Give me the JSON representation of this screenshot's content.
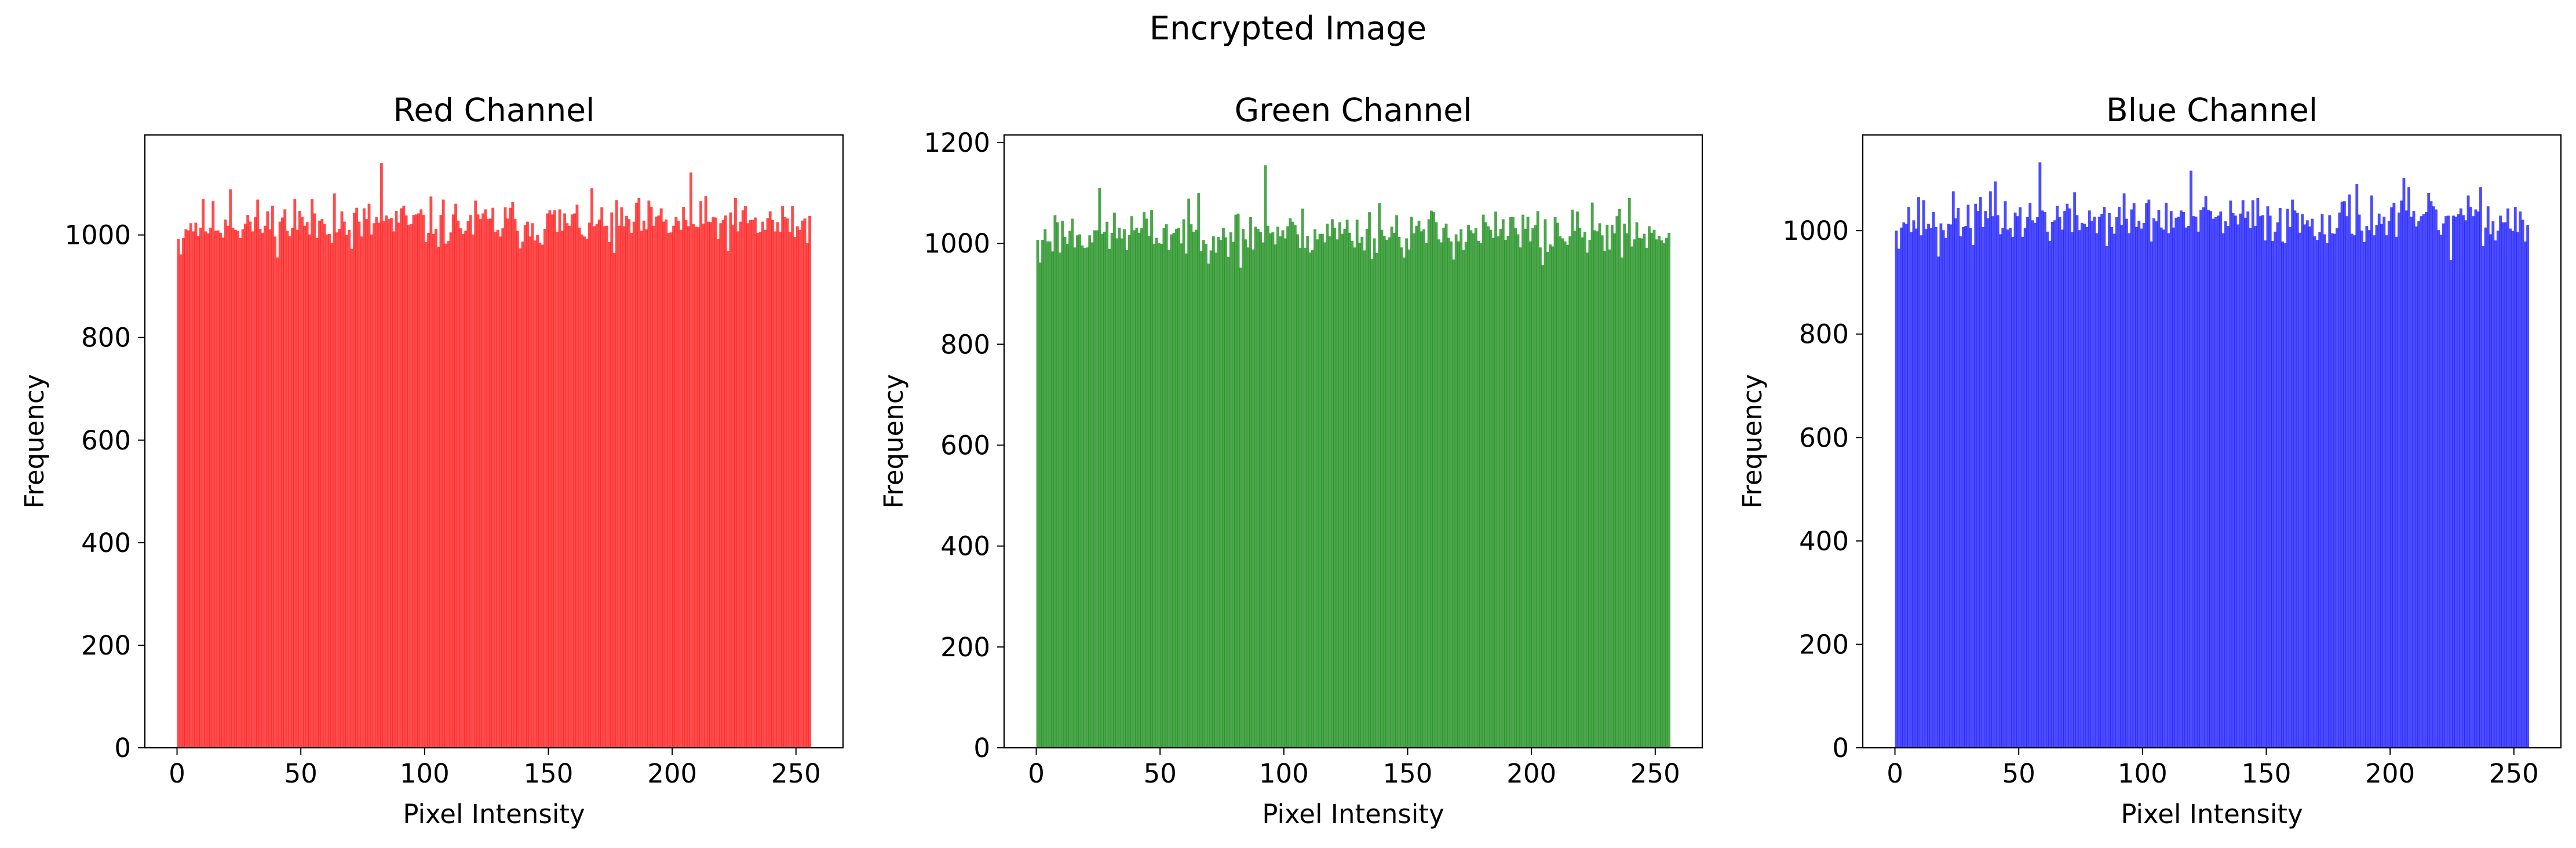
{
  "figure": {
    "suptitle": "Encrypted Image"
  },
  "chart_data": [
    {
      "type": "bar",
      "title": "Red Channel",
      "xlabel": "Pixel Intensity",
      "ylabel": "Frequency",
      "xlim": [
        -13,
        269
      ],
      "ylim": [
        0,
        1195
      ],
      "xticks": [
        0,
        50,
        100,
        150,
        200,
        250
      ],
      "yticks": [
        0,
        200,
        400,
        600,
        800,
        1000
      ],
      "color": "#ff0000",
      "alpha": 0.7,
      "bin_width": 1,
      "baseline": 1022,
      "amplitude": 24,
      "seed": 11,
      "peaks": [
        [
          82,
          1140
        ],
        [
          207,
          1122
        ],
        [
          63,
          1081
        ],
        [
          21,
          1089
        ],
        [
          47,
          1070
        ]
      ],
      "dips": [
        [
          1,
          962
        ],
        [
          176,
          965
        ],
        [
          70,
          973
        ]
      ]
    },
    {
      "type": "bar",
      "title": "Green Channel",
      "xlabel": "Pixel Intensity",
      "ylabel": "Frequency",
      "xlim": [
        -13,
        269
      ],
      "ylim": [
        0,
        1215
      ],
      "xticks": [
        0,
        50,
        100,
        150,
        200,
        250
      ],
      "yticks": [
        0,
        200,
        400,
        600,
        800,
        1000,
        1200
      ],
      "color": "#008000",
      "alpha": 0.7,
      "bin_width": 1,
      "baseline": 1022,
      "amplitude": 24,
      "seed": 23,
      "peaks": [
        [
          92,
          1155
        ],
        [
          25,
          1110
        ],
        [
          65,
          1100
        ],
        [
          239,
          1090
        ],
        [
          138,
          1080
        ]
      ],
      "dips": [
        [
          1,
          962
        ],
        [
          82,
          952
        ],
        [
          204,
          957
        ]
      ]
    },
    {
      "type": "bar",
      "title": "Blue Channel",
      "xlabel": "Pixel Intensity",
      "ylabel": "Frequency",
      "xlim": [
        -13,
        269
      ],
      "ylim": [
        0,
        1185
      ],
      "xticks": [
        0,
        50,
        100,
        150,
        200,
        250
      ],
      "yticks": [
        0,
        200,
        400,
        600,
        800,
        1000
      ],
      "color": "#0000ff",
      "alpha": 0.7,
      "bin_width": 1,
      "baseline": 1022,
      "amplitude": 24,
      "seed": 37,
      "peaks": [
        [
          58,
          1132
        ],
        [
          119,
          1116
        ],
        [
          205,
          1102
        ],
        [
          40,
          1095
        ],
        [
          186,
          1090
        ]
      ],
      "dips": [
        [
          1,
          965
        ],
        [
          224,
          943
        ],
        [
          17,
          950
        ]
      ]
    }
  ]
}
